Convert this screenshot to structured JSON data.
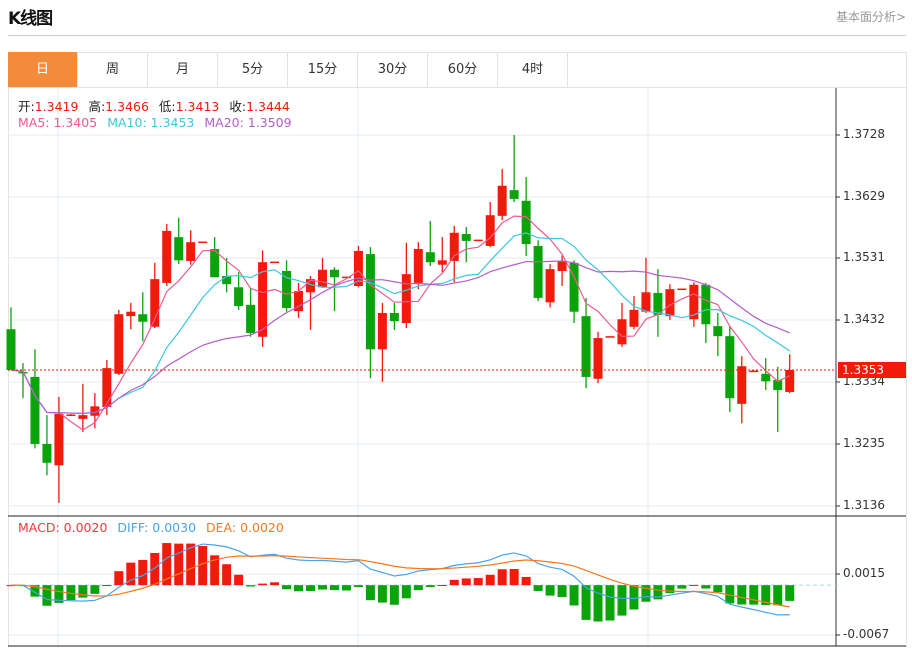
{
  "header": {
    "title": "K线图",
    "more_link": "基本面分析>"
  },
  "tabs": [
    {
      "label": "日",
      "active": true
    },
    {
      "label": "周"
    },
    {
      "label": "月"
    },
    {
      "label": "5分"
    },
    {
      "label": "15分"
    },
    {
      "label": "30分"
    },
    {
      "label": "60分"
    },
    {
      "label": "4时"
    }
  ],
  "ohlc_legend": {
    "open_label": "开:",
    "open": "1.3419",
    "high_label": "高:",
    "high": "1.3466",
    "low_label": "低:",
    "low": "1.3413",
    "close_label": "收:",
    "close": "1.3444"
  },
  "ma_legend": {
    "ma5": "MA5: 1.3405",
    "ma10": "MA10: 1.3453",
    "ma20": "MA20: 1.3509"
  },
  "macd_legend": {
    "macd": "MACD: 0.0020",
    "diff": "DIFF: 0.0030",
    "dea": "DEA: 0.0020"
  },
  "price_axis": [
    "1.3728",
    "1.3629",
    "1.3531",
    "1.3432",
    "1.3334",
    "1.3235",
    "1.3136"
  ],
  "macd_axis": [
    "0.0015",
    "-0.0067"
  ],
  "current_price": "1.3353",
  "colors": {
    "up": "#f21a0a",
    "down": "#0aa30a",
    "ma5": "#ee5a8f",
    "ma10": "#3cc8dd",
    "ma20": "#b35fc9",
    "diff": "#4aa3ea",
    "dea": "#f27a22",
    "active_tab": "#f28c3c"
  },
  "chart_data": {
    "type": "candlestick",
    "ylim": [
      1.3136,
      1.3728
    ],
    "macd_ylim": [
      -0.0067,
      0.0015
    ],
    "candles": [
      [
        1.3418,
        1.3453,
        1.3353,
        1.3353
      ],
      [
        1.335,
        1.3364,
        1.3308,
        1.3348
      ],
      [
        1.3342,
        1.3386,
        1.3228,
        1.3235
      ],
      [
        1.3235,
        1.3281,
        1.3185,
        1.3205
      ],
      [
        1.3201,
        1.331,
        1.3141,
        1.3283
      ],
      [
        1.3281,
        1.3283,
        1.328,
        1.3282
      ],
      [
        1.3275,
        1.3331,
        1.3254,
        1.3281
      ],
      [
        1.328,
        1.3316,
        1.326,
        1.3295
      ],
      [
        1.3294,
        1.3369,
        1.3281,
        1.3356
      ],
      [
        1.3347,
        1.3449,
        1.3345,
        1.3442
      ],
      [
        1.3439,
        1.346,
        1.3418,
        1.3446
      ],
      [
        1.3442,
        1.3477,
        1.3399,
        1.343
      ],
      [
        1.3422,
        1.3524,
        1.342,
        1.3498
      ],
      [
        1.3492,
        1.3586,
        1.3487,
        1.3575
      ],
      [
        1.3565,
        1.3596,
        1.3522,
        1.3528
      ],
      [
        1.3527,
        1.3576,
        1.3521,
        1.3557
      ],
      [
        1.3557,
        1.3558,
        1.3557,
        1.3558
      ],
      [
        1.3546,
        1.3565,
        1.3501,
        1.3501
      ],
      [
        1.3503,
        1.3532,
        1.3477,
        1.349
      ],
      [
        1.3485,
        1.3509,
        1.3449,
        1.3455
      ],
      [
        1.3457,
        1.3484,
        1.3406,
        1.3412
      ],
      [
        1.3406,
        1.3544,
        1.339,
        1.3525
      ],
      [
        1.3525,
        1.3526,
        1.3525,
        1.3526
      ],
      [
        1.3511,
        1.3528,
        1.3446,
        1.3452
      ],
      [
        1.3447,
        1.3492,
        1.3436,
        1.3479
      ],
      [
        1.3477,
        1.3503,
        1.3417,
        1.3498
      ],
      [
        1.3485,
        1.3532,
        1.3484,
        1.3513
      ],
      [
        1.3513,
        1.3517,
        1.3447,
        1.3501
      ],
      [
        1.3501,
        1.3502,
        1.3501,
        1.3502
      ],
      [
        1.3487,
        1.3551,
        1.3485,
        1.3543
      ],
      [
        1.3538,
        1.3549,
        1.334,
        1.3386
      ],
      [
        1.3386,
        1.346,
        1.3334,
        1.3444
      ],
      [
        1.3444,
        1.346,
        1.3417,
        1.3431
      ],
      [
        1.3428,
        1.3556,
        1.342,
        1.3506
      ],
      [
        1.3492,
        1.3557,
        1.3482,
        1.3546
      ],
      [
        1.3541,
        1.3591,
        1.3519,
        1.3525
      ],
      [
        1.3521,
        1.3565,
        1.3509,
        1.3528
      ],
      [
        1.3527,
        1.3583,
        1.3493,
        1.3572
      ],
      [
        1.357,
        1.3581,
        1.3525,
        1.3559
      ],
      [
        1.356,
        1.3561,
        1.356,
        1.3561
      ],
      [
        1.3551,
        1.3621,
        1.3549,
        1.36
      ],
      [
        1.3599,
        1.3674,
        1.3592,
        1.3647
      ],
      [
        1.364,
        1.3728,
        1.3621,
        1.3626
      ],
      [
        1.3623,
        1.3661,
        1.3535,
        1.3554
      ],
      [
        1.3551,
        1.356,
        1.3463,
        1.3468
      ],
      [
        1.3461,
        1.3522,
        1.3453,
        1.3514
      ],
      [
        1.3511,
        1.3536,
        1.3487,
        1.3527
      ],
      [
        1.3524,
        1.3528,
        1.3428,
        1.3446
      ],
      [
        1.3439,
        1.3468,
        1.3324,
        1.3342
      ],
      [
        1.3339,
        1.3414,
        1.3332,
        1.3404
      ],
      [
        1.3406,
        1.3407,
        1.3406,
        1.3407
      ],
      [
        1.3394,
        1.346,
        1.339,
        1.3434
      ],
      [
        1.3422,
        1.3471,
        1.3418,
        1.3449
      ],
      [
        1.3446,
        1.3532,
        1.3444,
        1.3477
      ],
      [
        1.3476,
        1.3514,
        1.3406,
        1.3441
      ],
      [
        1.3439,
        1.349,
        1.3433,
        1.3482
      ],
      [
        1.3482,
        1.3483,
        1.3482,
        1.3483
      ],
      [
        1.3434,
        1.3493,
        1.3422,
        1.3489
      ],
      [
        1.3489,
        1.3492,
        1.3396,
        1.3426
      ],
      [
        1.3423,
        1.3444,
        1.3375,
        1.3407
      ],
      [
        1.3407,
        1.3422,
        1.3286,
        1.3308
      ],
      [
        1.3299,
        1.3375,
        1.3268,
        1.3359
      ],
      [
        1.3351,
        1.3352,
        1.3351,
        1.3352
      ],
      [
        1.3347,
        1.3372,
        1.3321,
        1.3335
      ],
      [
        1.3337,
        1.3358,
        1.3254,
        1.3321
      ],
      [
        1.3318,
        1.3378,
        1.3316,
        1.3353
      ]
    ]
  }
}
